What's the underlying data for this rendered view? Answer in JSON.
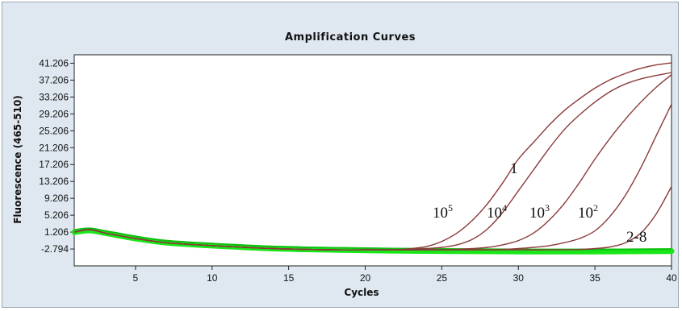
{
  "chart_data": {
    "type": "line",
    "title": "Amplification Curves",
    "xlabel": "Cycles",
    "ylabel": "Fluorescence (465-510)",
    "xlim": [
      1,
      40
    ],
    "ylim": [
      -6.794,
      43.206
    ],
    "x_ticks": [
      "5",
      "10",
      "15",
      "20",
      "25",
      "30",
      "35",
      "40"
    ],
    "y_ticks": [
      "41.206",
      "37.206",
      "33.206",
      "29.206",
      "25.206",
      "21.206",
      "17.206",
      "13.206",
      "9.206",
      "5.206",
      "1.206",
      "-2.794"
    ],
    "grid": false,
    "legend": "none",
    "colors": {
      "amplified": "#8b3a3a",
      "negative": "#19e619",
      "plot_bg": "#ffffff",
      "panel_bg": "#dfe8f1"
    },
    "series": [
      {
        "x": [
          1,
          2,
          3,
          5,
          7,
          10,
          14,
          18,
          20,
          22,
          23,
          24,
          25,
          26,
          27,
          28,
          29,
          30,
          31,
          32,
          33,
          34,
          35,
          36,
          37,
          38,
          39,
          40
        ],
        "y": [
          1.2,
          1.8,
          1.0,
          -0.3,
          -1.3,
          -2.0,
          -2.7,
          -3.0,
          -3.0,
          -3.0,
          -2.7,
          -2.2,
          -1.0,
          1.0,
          4.0,
          8.0,
          13.0,
          18.5,
          22.5,
          26.5,
          30.0,
          32.8,
          35.3,
          37.3,
          38.8,
          40.0,
          40.8,
          41.3
        ]
      },
      {
        "x": [
          1,
          2,
          3,
          5,
          7,
          10,
          14,
          18,
          20,
          22,
          23,
          24,
          25,
          26,
          27,
          28,
          29,
          30,
          31,
          32,
          33,
          34,
          35,
          36,
          37,
          38,
          39,
          40
        ],
        "y": [
          1.2,
          1.8,
          1.0,
          -0.3,
          -1.3,
          -2.0,
          -2.7,
          -3.0,
          -3.0,
          -3.0,
          -2.9,
          -2.7,
          -2.4,
          -1.8,
          -0.5,
          2.0,
          6.0,
          11.0,
          16.0,
          21.0,
          25.5,
          29.0,
          32.0,
          34.5,
          36.3,
          37.5,
          38.3,
          39.0
        ]
      },
      {
        "x": [
          1,
          2,
          3,
          5,
          7,
          10,
          14,
          18,
          20,
          22,
          24,
          25,
          26,
          27,
          28,
          29,
          30,
          31,
          32,
          33,
          34,
          35,
          36,
          37,
          38,
          39,
          40
        ],
        "y": [
          1.2,
          1.8,
          1.0,
          -0.3,
          -1.3,
          -2.0,
          -2.7,
          -3.0,
          -3.0,
          -3.0,
          -3.0,
          -3.0,
          -2.9,
          -2.7,
          -2.4,
          -1.8,
          -0.8,
          1.0,
          4.0,
          8.0,
          13.0,
          18.5,
          23.5,
          28.0,
          32.0,
          35.5,
          38.5
        ]
      },
      {
        "x": [
          1,
          2,
          3,
          5,
          7,
          10,
          14,
          18,
          20,
          22,
          24,
          26,
          28,
          29,
          30,
          31,
          32,
          33,
          34,
          35,
          36,
          37,
          38,
          39,
          40
        ],
        "y": [
          1.2,
          1.8,
          1.0,
          -0.3,
          -1.3,
          -2.0,
          -2.7,
          -3.0,
          -3.0,
          -3.0,
          -3.0,
          -3.0,
          -3.0,
          -2.9,
          -2.7,
          -2.4,
          -2.0,
          -1.3,
          -0.3,
          1.5,
          5.0,
          10.0,
          16.5,
          24.0,
          31.5
        ]
      },
      {
        "x": [
          1,
          2,
          3,
          5,
          7,
          10,
          14,
          18,
          20,
          22,
          24,
          26,
          28,
          30,
          32,
          34,
          35,
          36,
          37,
          38,
          39,
          40
        ],
        "y": [
          1.2,
          1.8,
          1.0,
          -0.3,
          -1.3,
          -2.0,
          -2.7,
          -3.0,
          -3.0,
          -3.0,
          -3.0,
          -3.0,
          -3.0,
          -3.0,
          -3.0,
          -2.9,
          -2.7,
          -2.3,
          -1.3,
          1.0,
          5.5,
          12.0
        ]
      }
    ],
    "negative_band": {
      "x": [
        1,
        2,
        3,
        5,
        7,
        10,
        14,
        18,
        22,
        26,
        30,
        35,
        40
      ],
      "y": [
        1.2,
        1.6,
        1.0,
        -0.3,
        -1.3,
        -2.0,
        -2.7,
        -3.0,
        -3.2,
        -3.3,
        -3.4,
        -3.4,
        -3.3
      ]
    },
    "annotations": {
      "one": "1",
      "a5": {
        "base": "10",
        "exp": "5"
      },
      "a4": {
        "base": "10",
        "exp": "4"
      },
      "a3": {
        "base": "10",
        "exp": "3"
      },
      "a2": {
        "base": "10",
        "exp": "2"
      },
      "neg": "2-8"
    }
  }
}
